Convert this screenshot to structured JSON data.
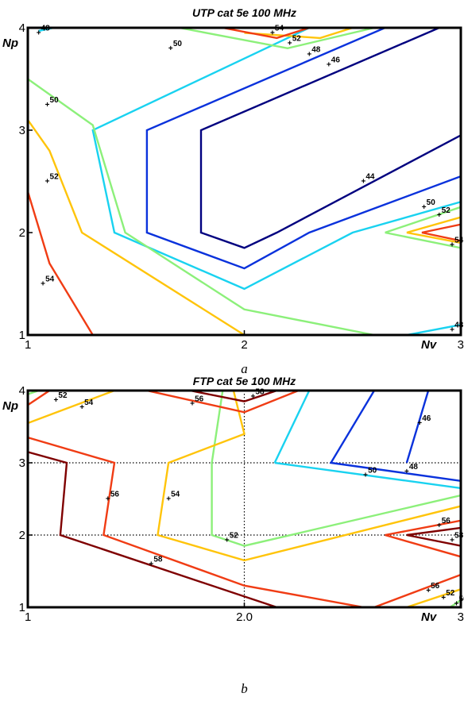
{
  "colors": {
    "44": "#00007f",
    "46": "#0a32dc",
    "48": "#19d2f0",
    "50": "#8cf07a",
    "52": "#ffc40a",
    "54": "#f03c14",
    "56": "#f03c14",
    "58": "#7f0000"
  },
  "chart_data": [
    {
      "type": "contour",
      "title": "UTP cat 5e 100 MHz",
      "xlabel": "Nv",
      "ylabel": "Np",
      "xlim": [
        1,
        3
      ],
      "ylim": [
        1,
        4
      ],
      "xticks": [
        "1",
        "2",
        "3"
      ],
      "yticks": [
        "1",
        "2",
        "3",
        "4"
      ],
      "grid": false,
      "caption": "a",
      "levels": [
        {
          "level": 44,
          "paths": [
            [
              [
                2.9,
                4.0
              ],
              [
                1.8,
                3.0
              ],
              [
                1.8,
                2.0
              ],
              [
                2.0,
                1.85
              ],
              [
                2.15,
                2.0
              ],
              [
                3.0,
                2.95
              ]
            ]
          ]
        },
        {
          "level": 46,
          "paths": [
            [
              [
                2.65,
                4.0
              ],
              [
                1.55,
                3.0
              ],
              [
                1.55,
                2.0
              ],
              [
                2.0,
                1.65
              ],
              [
                2.3,
                2.0
              ],
              [
                3.0,
                2.55
              ]
            ]
          ]
        },
        {
          "level": 48,
          "paths": [
            [
              [
                2.3,
                4.0
              ],
              [
                1.3,
                3.0
              ],
              [
                1.4,
                2.0
              ],
              [
                2.0,
                1.45
              ],
              [
                2.5,
                2.0
              ],
              [
                3.0,
                2.3
              ]
            ],
            [
              [
                1.05,
                3.97
              ],
              [
                1.12,
                4.0
              ]
            ],
            [
              [
                2.75,
                1.0
              ],
              [
                3.0,
                1.1
              ]
            ]
          ]
        },
        {
          "level": 50,
          "paths": [
            [
              [
                1.0,
                3.5
              ],
              [
                1.3,
                3.05
              ],
              [
                1.45,
                2.0
              ],
              [
                2.0,
                1.25
              ],
              [
                2.6,
                1.0
              ]
            ],
            [
              [
                1.7,
                4.0
              ],
              [
                2.2,
                3.8
              ],
              [
                2.6,
                4.0
              ]
            ],
            [
              [
                2.65,
                2.0
              ],
              [
                3.0,
                2.25
              ],
              [
                3.0,
                1.85
              ],
              [
                2.65,
                2.0
              ]
            ]
          ]
        },
        {
          "level": 52,
          "paths": [
            [
              [
                1.0,
                3.1
              ],
              [
                1.1,
                2.8
              ],
              [
                1.25,
                2.0
              ],
              [
                2.0,
                1.0
              ]
            ],
            [
              [
                2.5,
                4.0
              ],
              [
                2.35,
                3.9
              ],
              [
                2.0,
                3.95
              ]
            ],
            [
              [
                2.75,
                2.0
              ],
              [
                3.0,
                2.15
              ],
              [
                3.0,
                1.9
              ],
              [
                2.75,
                2.0
              ]
            ]
          ]
        },
        {
          "level": 54,
          "paths": [
            [
              [
                1.0,
                2.4
              ],
              [
                1.1,
                1.7
              ],
              [
                1.3,
                1.0
              ]
            ],
            [
              [
                1.9,
                4.0
              ],
              [
                2.15,
                3.9
              ],
              [
                2.3,
                4.0
              ]
            ],
            [
              [
                2.82,
                2.0
              ],
              [
                3.0,
                2.08
              ],
              [
                3.0,
                1.92
              ],
              [
                2.82,
                2.0
              ]
            ]
          ]
        }
      ],
      "labels": [
        {
          "text": "48",
          "x": 1.05,
          "y": 3.95
        },
        {
          "text": "50",
          "x": 1.66,
          "y": 3.8
        },
        {
          "text": "54",
          "x": 2.13,
          "y": 3.95
        },
        {
          "text": "52",
          "x": 2.21,
          "y": 3.85
        },
        {
          "text": "48",
          "x": 2.3,
          "y": 3.74
        },
        {
          "text": "46",
          "x": 2.39,
          "y": 3.64
        },
        {
          "text": "50",
          "x": 1.09,
          "y": 3.25
        },
        {
          "text": "52",
          "x": 1.09,
          "y": 2.5
        },
        {
          "text": "44",
          "x": 2.55,
          "y": 2.5
        },
        {
          "text": "50",
          "x": 2.83,
          "y": 2.25
        },
        {
          "text": "52",
          "x": 2.9,
          "y": 2.17
        },
        {
          "text": "54",
          "x": 2.96,
          "y": 1.88
        },
        {
          "text": "54",
          "x": 1.07,
          "y": 1.5
        },
        {
          "text": "48",
          "x": 2.96,
          "y": 1.05
        }
      ]
    },
    {
      "type": "contour",
      "title": "FTP cat 5e 100 MHz",
      "xlabel": "Nv",
      "ylabel": "Np",
      "xlim": [
        1,
        3
      ],
      "ylim": [
        1,
        4
      ],
      "xticks": [
        "1",
        "2.0",
        "3"
      ],
      "yticks": [
        "1",
        "2",
        "3",
        "4"
      ],
      "grid": true,
      "caption": "b",
      "levels": [
        {
          "level": 46,
          "paths": [
            [
              [
                2.6,
                4.0
              ],
              [
                2.4,
                3.0
              ],
              [
                3.0,
                2.75
              ]
            ],
            [
              [
                2.75,
                3.0
              ],
              [
                2.85,
                4.0
              ]
            ]
          ]
        },
        {
          "level": 48,
          "paths": [
            [
              [
                2.14,
                3.0
              ],
              [
                2.3,
                4.0
              ]
            ],
            [
              [
                2.14,
                3.0
              ],
              [
                3.0,
                2.65
              ]
            ]
          ]
        },
        {
          "level": 50,
          "paths": [
            [
              [
                1.9,
                4.0
              ],
              [
                1.85,
                3.0
              ],
              [
                1.85,
                2.0
              ],
              [
                2.0,
                1.85
              ],
              [
                3.0,
                2.55
              ]
            ],
            [
              [
                1.0,
                3.95
              ],
              [
                1.05,
                4.0
              ]
            ],
            [
              [
                2.95,
                1.0
              ],
              [
                3.0,
                1.1
              ]
            ]
          ]
        },
        {
          "level": 52,
          "paths": [
            [
              [
                1.0,
                3.55
              ],
              [
                1.4,
                4.0
              ]
            ],
            [
              [
                1.95,
                4.0
              ],
              [
                2.0,
                3.4
              ],
              [
                1.65,
                3.0
              ],
              [
                1.6,
                2.0
              ],
              [
                2.0,
                1.65
              ],
              [
                3.0,
                2.4
              ]
            ],
            [
              [
                2.75,
                1.0
              ],
              [
                3.0,
                1.25
              ]
            ]
          ]
        },
        {
          "level": 54,
          "paths": [
            [
              [
                1.0,
                3.8
              ],
              [
                1.1,
                4.0
              ]
            ],
            [
              [
                2.6,
                1.0
              ],
              [
                3.0,
                1.45
              ]
            ]
          ]
        },
        {
          "level": 56,
          "paths": [
            [
              [
                1.0,
                3.35
              ],
              [
                1.4,
                3.0
              ],
              [
                1.35,
                2.0
              ],
              [
                2.0,
                1.3
              ],
              [
                2.55,
                1.0
              ]
            ],
            [
              [
                1.55,
                4.0
              ],
              [
                2.0,
                3.7
              ],
              [
                2.25,
                4.0
              ]
            ],
            [
              [
                3.0,
                2.2
              ],
              [
                2.65,
                2.0
              ],
              [
                3.0,
                1.7
              ]
            ]
          ]
        },
        {
          "level": 58,
          "paths": [
            [
              [
                1.0,
                3.15
              ],
              [
                1.18,
                3.0
              ],
              [
                1.15,
                2.0
              ],
              [
                2.0,
                1.15
              ],
              [
                2.15,
                1.0
              ]
            ],
            [
              [
                1.75,
                4.0
              ],
              [
                2.0,
                3.85
              ],
              [
                2.15,
                4.0
              ]
            ],
            [
              [
                3.0,
                2.1
              ],
              [
                2.75,
                2.0
              ],
              [
                3.0,
                1.85
              ]
            ]
          ]
        }
      ],
      "labels": [
        {
          "text": "52",
          "x": 1.13,
          "y": 3.87
        },
        {
          "text": "54",
          "x": 1.25,
          "y": 3.77
        },
        {
          "text": "56",
          "x": 1.76,
          "y": 3.82
        },
        {
          "text": "58",
          "x": 2.04,
          "y": 3.92
        },
        {
          "text": "46",
          "x": 2.81,
          "y": 3.55
        },
        {
          "text": "50",
          "x": 2.56,
          "y": 2.83
        },
        {
          "text": "48",
          "x": 2.75,
          "y": 2.88
        },
        {
          "text": "56",
          "x": 1.37,
          "y": 2.5
        },
        {
          "text": "54",
          "x": 1.65,
          "y": 2.5
        },
        {
          "text": "52",
          "x": 1.92,
          "y": 1.93
        },
        {
          "text": "56",
          "x": 2.9,
          "y": 2.13
        },
        {
          "text": "58",
          "x": 2.96,
          "y": 1.93
        },
        {
          "text": "58",
          "x": 1.57,
          "y": 1.6
        },
        {
          "text": "56",
          "x": 2.85,
          "y": 1.23
        },
        {
          "text": "52",
          "x": 2.92,
          "y": 1.13
        },
        {
          "text": "50",
          "x": 2.98,
          "y": 1.05
        }
      ]
    }
  ]
}
